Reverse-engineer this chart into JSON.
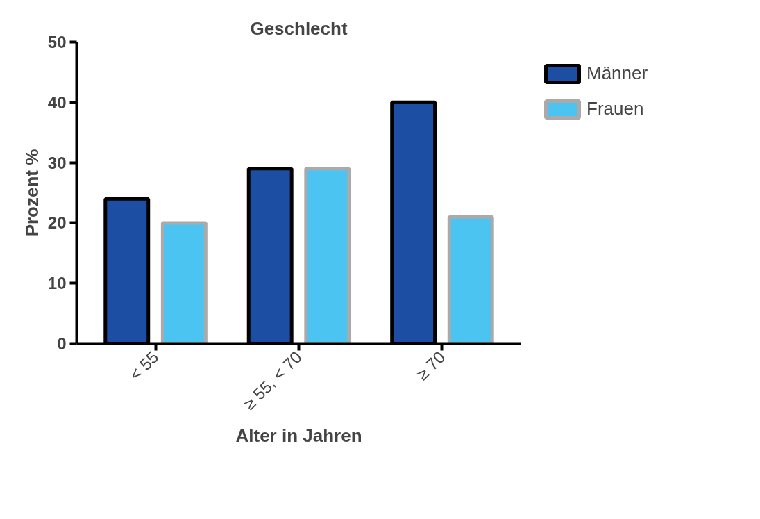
{
  "chart_data": {
    "type": "bar",
    "title": "Geschlecht",
    "xlabel": "Alter in Jahren",
    "ylabel": "Prozent %",
    "categories": [
      "< 55",
      "≥ 55, < 70",
      "≥ 70"
    ],
    "series": [
      {
        "name": "Männer",
        "color": "#1c4fa3",
        "values": [
          24,
          29,
          40
        ]
      },
      {
        "name": "Frauen",
        "color": "#4cc4f2",
        "values": [
          20,
          29,
          21
        ]
      }
    ],
    "ylim": [
      0,
      50
    ],
    "yticks": [
      0,
      10,
      20,
      30,
      40,
      50
    ],
    "grid": false,
    "legend": "top right"
  }
}
